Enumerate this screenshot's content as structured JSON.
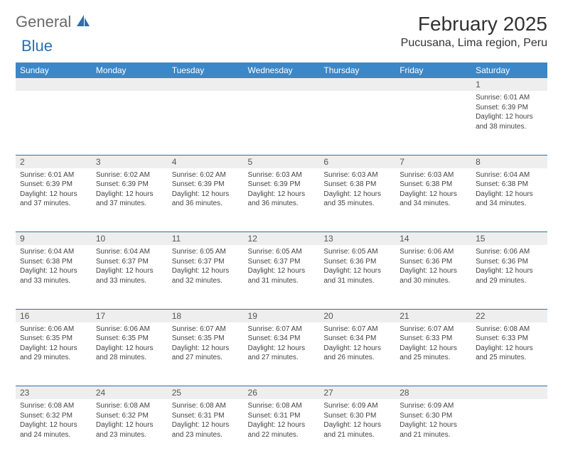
{
  "logo": {
    "text1": "General",
    "text2": "Blue"
  },
  "title": "February 2025",
  "location": "Pucusana, Lima region, Peru",
  "colors": {
    "header_bg": "#3b87c8",
    "header_text": "#ffffff",
    "border": "#2a6fb0",
    "daynum_bg": "#eeeeee",
    "text": "#444444"
  },
  "day_headers": [
    "Sunday",
    "Monday",
    "Tuesday",
    "Wednesday",
    "Thursday",
    "Friday",
    "Saturday"
  ],
  "weeks": [
    {
      "nums": [
        "",
        "",
        "",
        "",
        "",
        "",
        "1"
      ],
      "cells": [
        [],
        [],
        [],
        [],
        [],
        [],
        [
          "Sunrise: 6:01 AM",
          "Sunset: 6:39 PM",
          "Daylight: 12 hours",
          "and 38 minutes."
        ]
      ]
    },
    {
      "nums": [
        "2",
        "3",
        "4",
        "5",
        "6",
        "7",
        "8"
      ],
      "cells": [
        [
          "Sunrise: 6:01 AM",
          "Sunset: 6:39 PM",
          "Daylight: 12 hours",
          "and 37 minutes."
        ],
        [
          "Sunrise: 6:02 AM",
          "Sunset: 6:39 PM",
          "Daylight: 12 hours",
          "and 37 minutes."
        ],
        [
          "Sunrise: 6:02 AM",
          "Sunset: 6:39 PM",
          "Daylight: 12 hours",
          "and 36 minutes."
        ],
        [
          "Sunrise: 6:03 AM",
          "Sunset: 6:39 PM",
          "Daylight: 12 hours",
          "and 36 minutes."
        ],
        [
          "Sunrise: 6:03 AM",
          "Sunset: 6:38 PM",
          "Daylight: 12 hours",
          "and 35 minutes."
        ],
        [
          "Sunrise: 6:03 AM",
          "Sunset: 6:38 PM",
          "Daylight: 12 hours",
          "and 34 minutes."
        ],
        [
          "Sunrise: 6:04 AM",
          "Sunset: 6:38 PM",
          "Daylight: 12 hours",
          "and 34 minutes."
        ]
      ]
    },
    {
      "nums": [
        "9",
        "10",
        "11",
        "12",
        "13",
        "14",
        "15"
      ],
      "cells": [
        [
          "Sunrise: 6:04 AM",
          "Sunset: 6:38 PM",
          "Daylight: 12 hours",
          "and 33 minutes."
        ],
        [
          "Sunrise: 6:04 AM",
          "Sunset: 6:37 PM",
          "Daylight: 12 hours",
          "and 33 minutes."
        ],
        [
          "Sunrise: 6:05 AM",
          "Sunset: 6:37 PM",
          "Daylight: 12 hours",
          "and 32 minutes."
        ],
        [
          "Sunrise: 6:05 AM",
          "Sunset: 6:37 PM",
          "Daylight: 12 hours",
          "and 31 minutes."
        ],
        [
          "Sunrise: 6:05 AM",
          "Sunset: 6:36 PM",
          "Daylight: 12 hours",
          "and 31 minutes."
        ],
        [
          "Sunrise: 6:06 AM",
          "Sunset: 6:36 PM",
          "Daylight: 12 hours",
          "and 30 minutes."
        ],
        [
          "Sunrise: 6:06 AM",
          "Sunset: 6:36 PM",
          "Daylight: 12 hours",
          "and 29 minutes."
        ]
      ]
    },
    {
      "nums": [
        "16",
        "17",
        "18",
        "19",
        "20",
        "21",
        "22"
      ],
      "cells": [
        [
          "Sunrise: 6:06 AM",
          "Sunset: 6:35 PM",
          "Daylight: 12 hours",
          "and 29 minutes."
        ],
        [
          "Sunrise: 6:06 AM",
          "Sunset: 6:35 PM",
          "Daylight: 12 hours",
          "and 28 minutes."
        ],
        [
          "Sunrise: 6:07 AM",
          "Sunset: 6:35 PM",
          "Daylight: 12 hours",
          "and 27 minutes."
        ],
        [
          "Sunrise: 6:07 AM",
          "Sunset: 6:34 PM",
          "Daylight: 12 hours",
          "and 27 minutes."
        ],
        [
          "Sunrise: 6:07 AM",
          "Sunset: 6:34 PM",
          "Daylight: 12 hours",
          "and 26 minutes."
        ],
        [
          "Sunrise: 6:07 AM",
          "Sunset: 6:33 PM",
          "Daylight: 12 hours",
          "and 25 minutes."
        ],
        [
          "Sunrise: 6:08 AM",
          "Sunset: 6:33 PM",
          "Daylight: 12 hours",
          "and 25 minutes."
        ]
      ]
    },
    {
      "nums": [
        "23",
        "24",
        "25",
        "26",
        "27",
        "28",
        ""
      ],
      "cells": [
        [
          "Sunrise: 6:08 AM",
          "Sunset: 6:32 PM",
          "Daylight: 12 hours",
          "and 24 minutes."
        ],
        [
          "Sunrise: 6:08 AM",
          "Sunset: 6:32 PM",
          "Daylight: 12 hours",
          "and 23 minutes."
        ],
        [
          "Sunrise: 6:08 AM",
          "Sunset: 6:31 PM",
          "Daylight: 12 hours",
          "and 23 minutes."
        ],
        [
          "Sunrise: 6:08 AM",
          "Sunset: 6:31 PM",
          "Daylight: 12 hours",
          "and 22 minutes."
        ],
        [
          "Sunrise: 6:09 AM",
          "Sunset: 6:30 PM",
          "Daylight: 12 hours",
          "and 21 minutes."
        ],
        [
          "Sunrise: 6:09 AM",
          "Sunset: 6:30 PM",
          "Daylight: 12 hours",
          "and 21 minutes."
        ],
        []
      ]
    }
  ]
}
